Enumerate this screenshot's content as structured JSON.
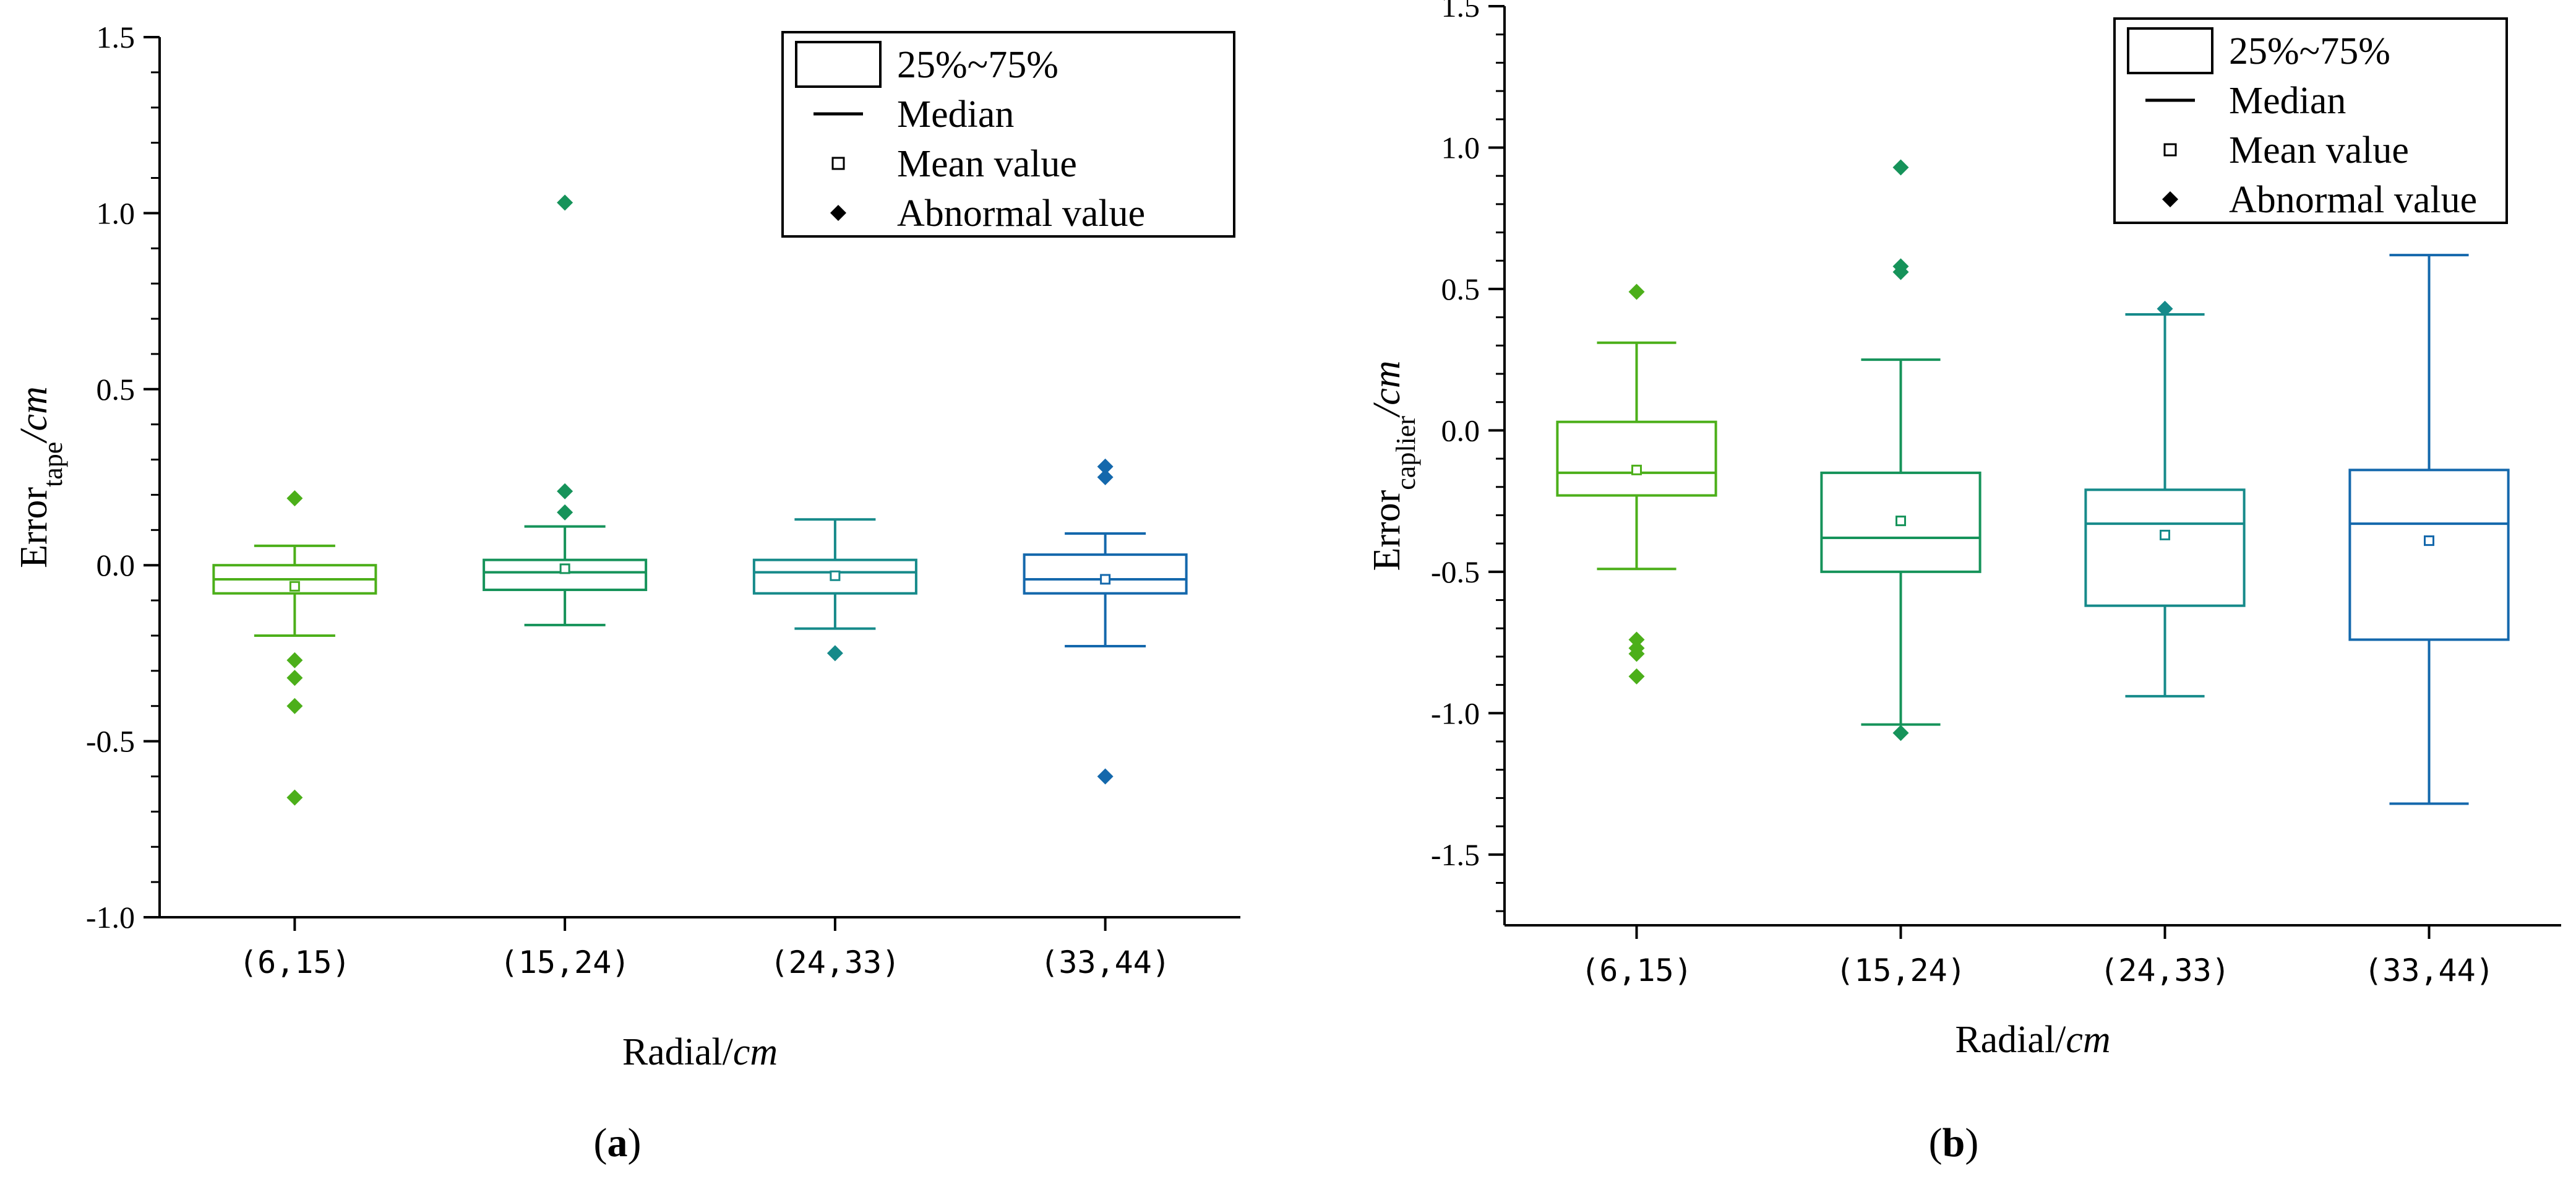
{
  "panels": [
    {
      "label": "a",
      "chart_data": {
        "type": "box",
        "categories": [
          "(6,15)",
          "(15,24)",
          "(24,33)",
          "(33,44)"
        ],
        "colors": [
          "#4caf1a",
          "#16935a",
          "#168a8a",
          "#1468ac"
        ],
        "ylim": [
          -1.0,
          1.5
        ],
        "yticks": [
          -1.0,
          -0.5,
          0.0,
          0.5,
          1.0,
          1.5
        ],
        "ytick_labels": [
          "-1.0",
          "-0.5",
          "0.0",
          "0.5",
          "1.0",
          "1.5"
        ],
        "xlabel": {
          "main": "Radial/",
          "unit": "cm"
        },
        "ylabel": {
          "main": "Error",
          "sub": "tape",
          "unit": "/cm"
        },
        "boxes": [
          {
            "whisker_low": -0.2,
            "q1": -0.08,
            "median": -0.04,
            "q3": 0.0,
            "whisker_high": 0.055,
            "mean": -0.06,
            "outliers": [
              0.19,
              -0.27,
              -0.32,
              -0.4,
              -0.66
            ]
          },
          {
            "whisker_low": -0.17,
            "q1": -0.07,
            "median": -0.02,
            "q3": 0.015,
            "whisker_high": 0.11,
            "mean": -0.01,
            "outliers": [
              1.03,
              0.21,
              0.15
            ]
          },
          {
            "whisker_low": -0.18,
            "q1": -0.08,
            "median": -0.02,
            "q3": 0.015,
            "whisker_high": 0.13,
            "mean": -0.03,
            "outliers": [
              -0.25
            ]
          },
          {
            "whisker_low": -0.23,
            "q1": -0.08,
            "median": -0.04,
            "q3": 0.03,
            "whisker_high": 0.09,
            "mean": -0.04,
            "outliers": [
              0.28,
              0.25,
              -0.6
            ]
          }
        ],
        "legend": [
          "25%~75%",
          "Median",
          "Mean value",
          "Abnormal value"
        ],
        "legend_position": "top-right"
      }
    },
    {
      "label": "b",
      "chart_data": {
        "type": "box",
        "categories": [
          "(6,15)",
          "(15,24)",
          "(24,33)",
          "(33,44)"
        ],
        "colors": [
          "#4caf1a",
          "#16935a",
          "#168a8a",
          "#1468ac"
        ],
        "ylim": [
          -1.75,
          1.5
        ],
        "yticks": [
          -1.5,
          -1.0,
          -0.5,
          0.0,
          0.5,
          1.0,
          1.5
        ],
        "ytick_labels": [
          "-1.5",
          "-1.0",
          "-0.5",
          "0.0",
          "0.5",
          "1.0",
          "1.5"
        ],
        "xlabel": {
          "main": "Radial/",
          "unit": "cm"
        },
        "ylabel": {
          "main": "Error",
          "sub": "caplier",
          "unit": "/cm"
        },
        "boxes": [
          {
            "whisker_low": -0.49,
            "q1": -0.23,
            "median": -0.15,
            "q3": 0.03,
            "whisker_high": 0.31,
            "mean": -0.14,
            "outliers": [
              0.49,
              -0.74,
              -0.77,
              -0.79,
              -0.87
            ]
          },
          {
            "whisker_low": -1.04,
            "q1": -0.5,
            "median": -0.38,
            "q3": -0.15,
            "whisker_high": 0.25,
            "mean": -0.32,
            "outliers": [
              0.93,
              0.58,
              0.56,
              -1.07
            ]
          },
          {
            "whisker_low": -0.94,
            "q1": -0.62,
            "median": -0.33,
            "q3": -0.21,
            "whisker_high": 0.41,
            "mean": -0.37,
            "outliers": [
              0.43
            ]
          },
          {
            "whisker_low": -1.32,
            "q1": -0.74,
            "median": -0.33,
            "q3": -0.14,
            "whisker_high": 0.62,
            "mean": -0.39,
            "outliers": []
          }
        ],
        "legend": [
          "25%~75%",
          "Median",
          "Mean value",
          "Abnormal value"
        ],
        "legend_position": "top-right"
      }
    }
  ]
}
